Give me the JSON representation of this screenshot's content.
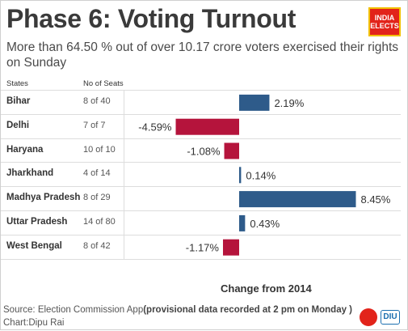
{
  "title": "Phase 6: Voting Turnout",
  "subtitle": "More than 64.50 % out of  over 10.17 crore voters exercised their rights on Sunday",
  "logo_text": "INDIA ELECTS",
  "column_headers": {
    "states": "States",
    "seats": "No of Seats"
  },
  "rows": [
    {
      "state": "Bihar",
      "seats": "8 of 40"
    },
    {
      "state": "Delhi",
      "seats": "7 of 7"
    },
    {
      "state": "Haryana",
      "seats": "10 of 10"
    },
    {
      "state": "Jharkhand",
      "seats": "4 of 14"
    },
    {
      "state": "Madhya Pradesh",
      "seats": "8 of 29"
    },
    {
      "state": "Uttar Pradesh",
      "seats": "14 of 80"
    },
    {
      "state": "West Bengal",
      "seats": "8 of 42"
    }
  ],
  "chart_data": {
    "type": "bar",
    "orientation": "horizontal",
    "categories": [
      "Bihar",
      "Delhi",
      "Haryana",
      "Jharkhand",
      "Madhya Pradesh",
      "Uttar Pradesh",
      "West Bengal"
    ],
    "values": [
      2.19,
      -4.59,
      -1.08,
      0.14,
      8.45,
      0.43,
      -1.17
    ],
    "value_labels": [
      "2.19%",
      "-4.59%",
      "-1.08%",
      "0.14%",
      "8.45%",
      "0.43%",
      "-1.17%"
    ],
    "xlabel": "Change from 2014",
    "colors": {
      "positive": "#2e5b8a",
      "negative": "#b5143c"
    }
  },
  "footer": {
    "source_prefix": "Source: Election Commission App",
    "source_note": "(provisional data recorded at 2 pm on Monday )",
    "credit": "Chart:Dipu Rai",
    "logo_text": "DIU"
  }
}
